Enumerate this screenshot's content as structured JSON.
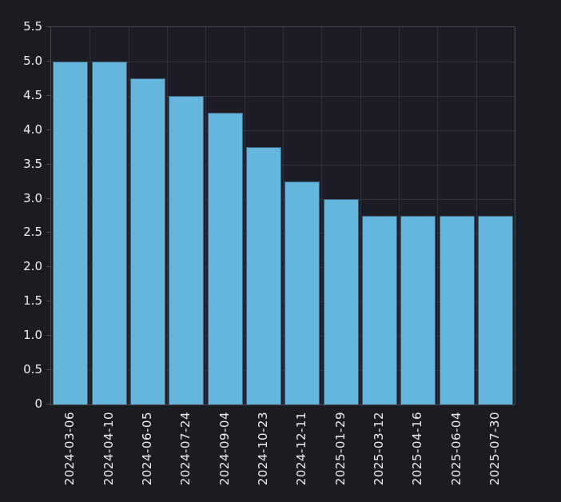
{
  "chart_data": {
    "type": "bar",
    "title": "",
    "xlabel": "",
    "ylabel": "",
    "categories": [
      "2024-03-06",
      "2024-04-10",
      "2024-06-05",
      "2024-07-24",
      "2024-09-04",
      "2024-10-23",
      "2024-12-11",
      "2025-01-29",
      "2025-03-12",
      "2025-04-16",
      "2025-06-04",
      "2025-07-30"
    ],
    "values": [
      5.0,
      5.0,
      4.75,
      4.5,
      4.25,
      3.75,
      3.25,
      3.0,
      2.75,
      2.75,
      2.75,
      2.75
    ],
    "ylim": [
      0,
      5.5
    ],
    "ytick_step": 0.5,
    "ytick_labels": [
      "0",
      "0.5",
      "1.0",
      "1.5",
      "2.0",
      "2.5",
      "3.0",
      "3.5",
      "4.0",
      "4.5",
      "5.0",
      "5.5"
    ],
    "grid": true,
    "legend": "none",
    "colors": {
      "background": "#1b1b22",
      "plot_background": "#1c1c24",
      "bar_fill": "#64b6dd",
      "bar_border": "#3e627a",
      "gridline": "#31313b",
      "plot_border": "#4a4a55",
      "tick": "#4a4a55",
      "text": "#f0f0f0"
    }
  }
}
